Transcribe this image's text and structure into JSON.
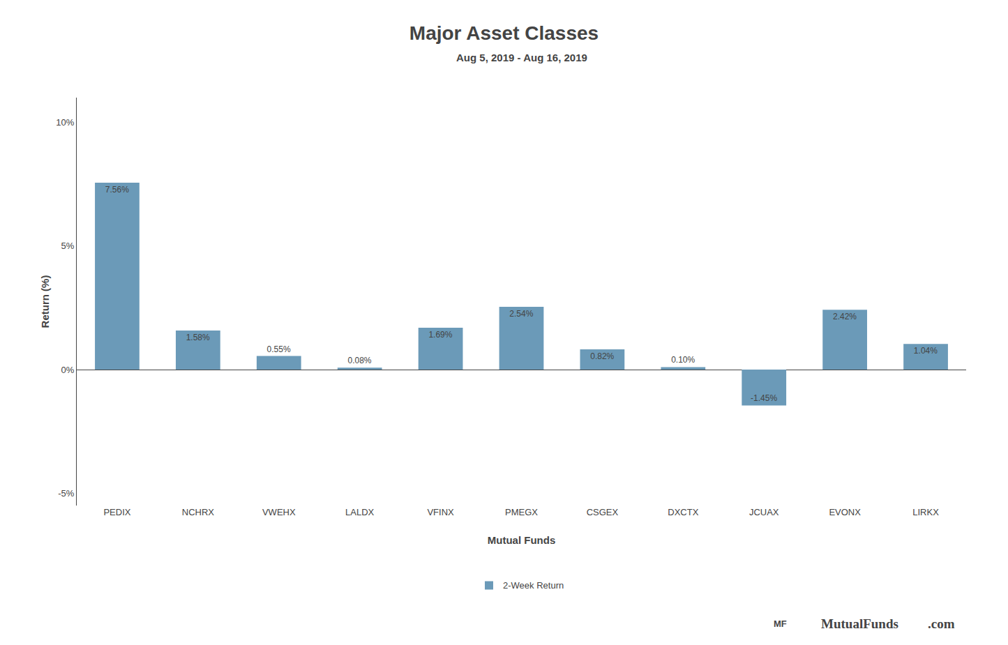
{
  "chart_data": {
    "type": "bar",
    "title": "Major Asset Classes",
    "subtitle": "Aug 5, 2019 - Aug 16, 2019",
    "xlabel": "Mutual Funds",
    "ylabel": "Return (%)",
    "categories": [
      "PEDIX",
      "NCHRX",
      "VWEHX",
      "LALDX",
      "VFINX",
      "PMEGX",
      "CSGEX",
      "DXCTX",
      "JCUAX",
      "EVONX",
      "LIRKX"
    ],
    "series": [
      {
        "name": "2-Week Return",
        "color": "#6b9ab8",
        "values": [
          7.56,
          1.58,
          0.55,
          0.08,
          1.69,
          2.54,
          0.82,
          0.1,
          -1.45,
          2.42,
          1.04
        ],
        "value_labels": [
          "7.56%",
          "1.58%",
          "0.55%",
          "0.08%",
          "1.69%",
          "2.54%",
          "0.82%",
          "0.10%",
          "-1.45%",
          "2.42%",
          "1.04%"
        ]
      }
    ],
    "data_labels": true,
    "ylim": [
      -5.5,
      11.0
    ],
    "yticks": [
      {
        "value": -5,
        "label": "-5%"
      },
      {
        "value": 0,
        "label": "0%"
      },
      {
        "value": 5,
        "label": "5%"
      },
      {
        "value": 10,
        "label": "10%"
      }
    ],
    "grid": false,
    "legend": "bottom",
    "annotations": [
      "MF",
      "MutualFunds",
      ".com"
    ]
  }
}
